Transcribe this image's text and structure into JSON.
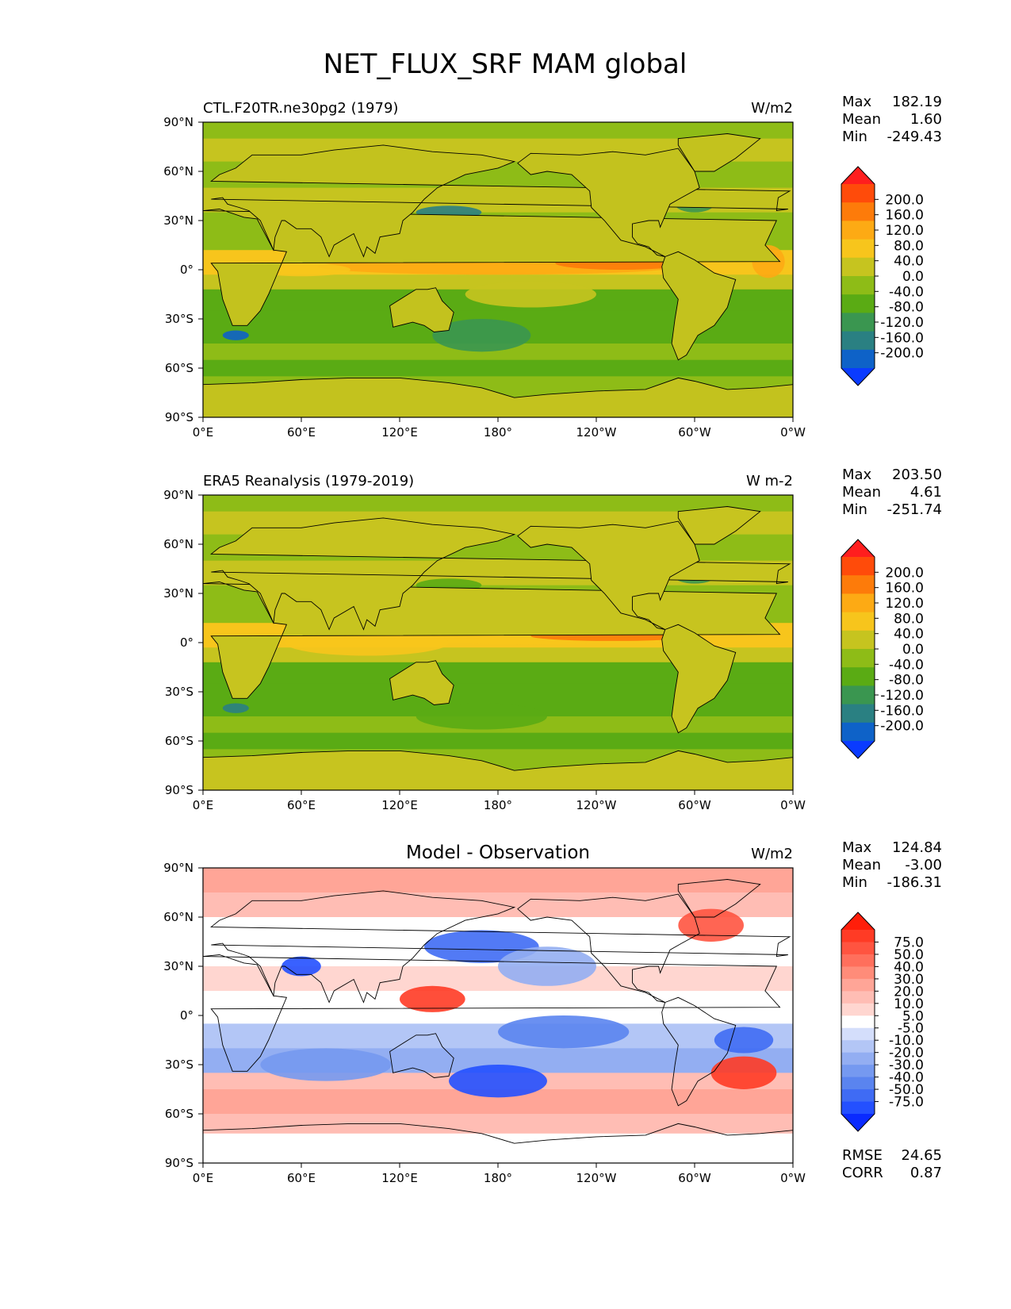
{
  "figure": {
    "title": "NET_FLUX_SRF MAM global"
  },
  "colors": {
    "seq": [
      "#0a3bff",
      "#0e62c8",
      "#2a8082",
      "#3a9650",
      "#5aab14",
      "#8ebc17",
      "#c6c41f",
      "#f7c51c",
      "#fdaa14",
      "#fd7b0a",
      "#ff4b0a",
      "#ff1e1e"
    ],
    "div": [
      "#0a2aff",
      "#2450ff",
      "#3f6bf4",
      "#5a84ef",
      "#7599f0",
      "#93aef2",
      "#b3c6f6",
      "#d4defb",
      "#ffffff",
      "#ffd6d0",
      "#ffbdb4",
      "#ffa597",
      "#ff8c79",
      "#ff6f5c",
      "#ff5440",
      "#ff3b25",
      "#ff1e0a"
    ],
    "land": "#c3c21e",
    "landAlt": "#c7c41f",
    "diffLand": "#ffffff"
  },
  "chart_data": [
    {
      "type": "heatmap",
      "title": "CTL.F20TR.ne30pg2 (1979)",
      "units": "W/m2",
      "stats": [
        {
          "label": "Max",
          "value": "182.19"
        },
        {
          "label": "Mean",
          "value": "1.60"
        },
        {
          "label": "Min",
          "value": "-249.43"
        }
      ],
      "colorbar": {
        "levels": [
          "200.0",
          "160.0",
          "120.0",
          "80.0",
          "40.0",
          "0.0",
          "-40.0",
          "-80.0",
          "-120.0",
          "-160.0",
          "-200.0"
        ],
        "extend": "both",
        "palette": "seq"
      },
      "xticks": [
        "0°E",
        "60°E",
        "120°E",
        "180°",
        "120°W",
        "60°W",
        "0°W"
      ],
      "yticks": [
        "90°N",
        "60°N",
        "30°N",
        "0°",
        "30°S",
        "60°S",
        "90°S"
      ],
      "xlim": [
        0,
        360
      ],
      "ylim": [
        -90,
        90
      ]
    },
    {
      "type": "heatmap",
      "title": "ERA5 Reanalysis (1979-2019)",
      "units": "W m-2",
      "stats": [
        {
          "label": "Max",
          "value": "203.50"
        },
        {
          "label": "Mean",
          "value": "4.61"
        },
        {
          "label": "Min",
          "value": "-251.74"
        }
      ],
      "colorbar": {
        "levels": [
          "200.0",
          "160.0",
          "120.0",
          "80.0",
          "40.0",
          "0.0",
          "-40.0",
          "-80.0",
          "-120.0",
          "-160.0",
          "-200.0"
        ],
        "extend": "both",
        "palette": "seq"
      },
      "xticks": [
        "0°E",
        "60°E",
        "120°E",
        "180°",
        "120°W",
        "60°W",
        "0°W"
      ],
      "yticks": [
        "90°N",
        "60°N",
        "30°N",
        "0°",
        "30°S",
        "60°S",
        "90°S"
      ],
      "xlim": [
        0,
        360
      ],
      "ylim": [
        -90,
        90
      ]
    },
    {
      "type": "heatmap",
      "title": "Model - Observation",
      "units": "W/m2",
      "stats": [
        {
          "label": "Max",
          "value": "124.84"
        },
        {
          "label": "Mean",
          "value": "-3.00"
        },
        {
          "label": "Min",
          "value": "-186.31"
        }
      ],
      "colorbar": {
        "levels": [
          "75.0",
          "50.0",
          "40.0",
          "30.0",
          "20.0",
          "10.0",
          "5.0",
          "-5.0",
          "-10.0",
          "-20.0",
          "-30.0",
          "-40.0",
          "-50.0",
          "-75.0"
        ],
        "extend": "both",
        "palette": "div"
      },
      "xticks": [
        "0°E",
        "60°E",
        "120°E",
        "180°",
        "120°W",
        "60°W",
        "0°W"
      ],
      "yticks": [
        "90°N",
        "60°N",
        "30°N",
        "0°",
        "30°S",
        "60°S",
        "90°S"
      ],
      "xlim": [
        0,
        360
      ],
      "ylim": [
        -90,
        90
      ],
      "metrics": [
        {
          "label": "RMSE",
          "value": "24.65"
        },
        {
          "label": "CORR",
          "value": "0.87"
        }
      ]
    }
  ]
}
